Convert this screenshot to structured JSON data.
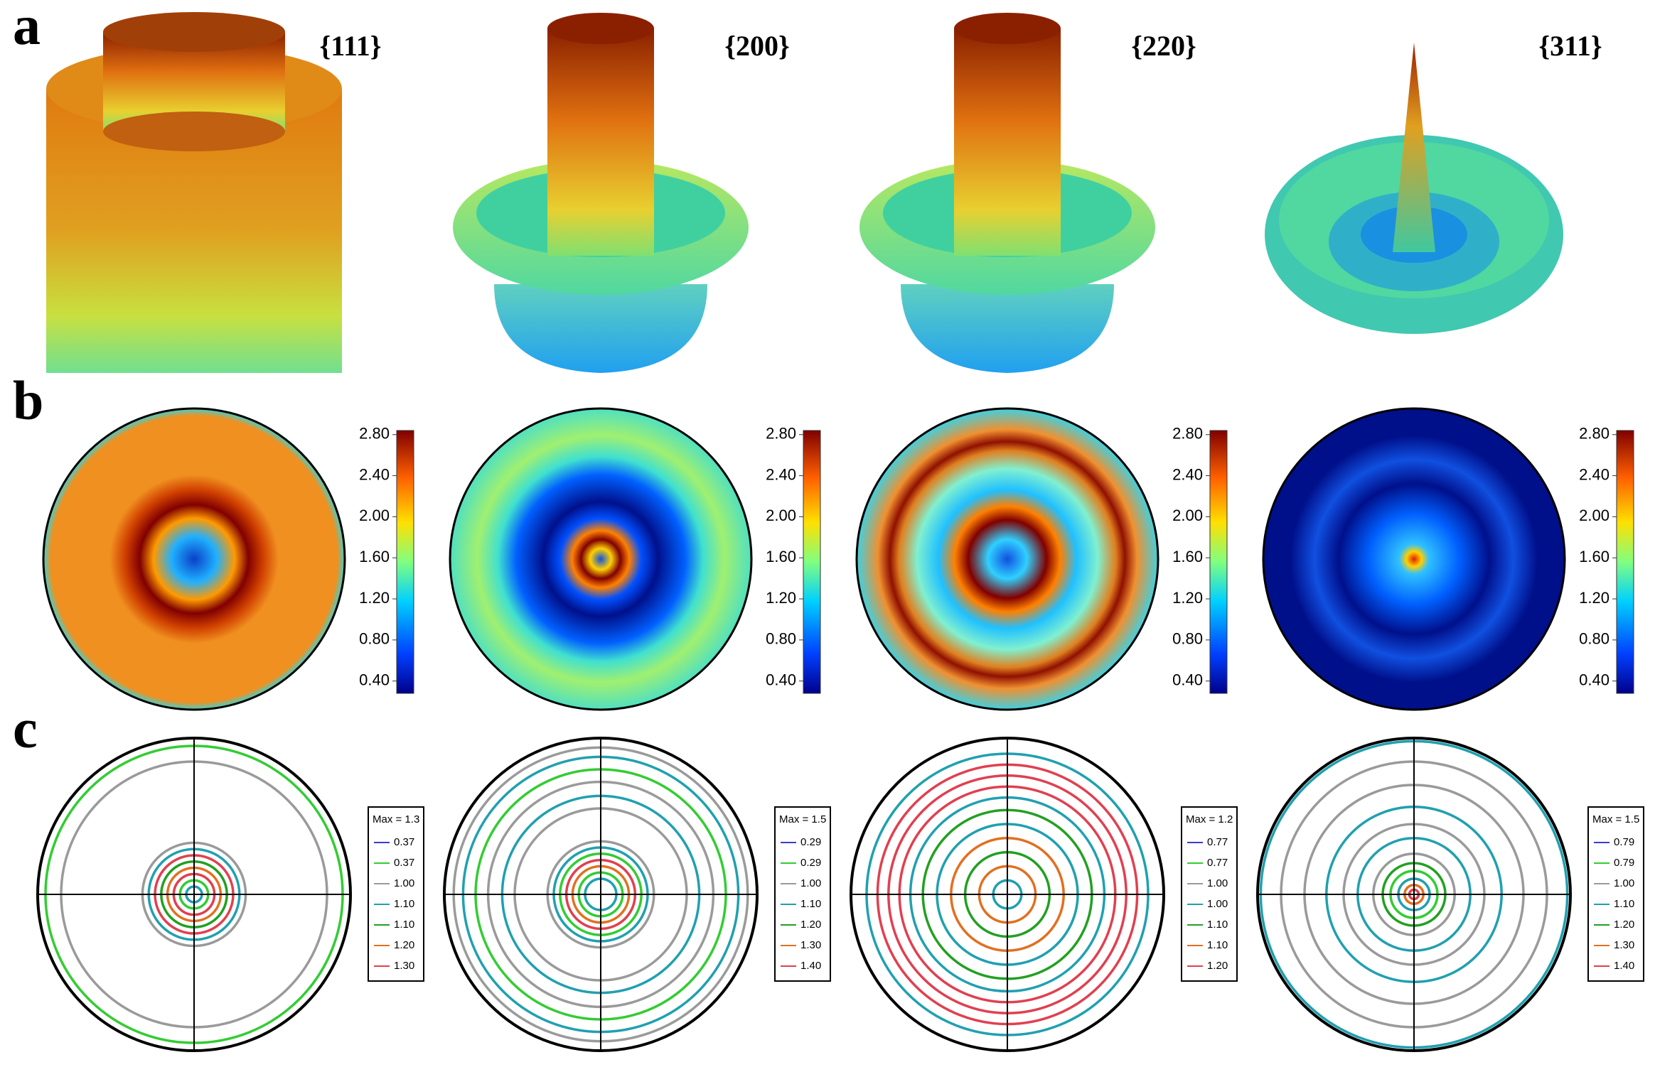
{
  "panel_labels": [
    "a",
    "b",
    "c"
  ],
  "colorbar_lim": [
    0.28,
    2.84
  ],
  "contour_colors": [
    "#3b3bd1",
    "#33cc33",
    "#9a9a9a",
    "#20a0b0",
    "#22a022",
    "#e07020",
    "#e04050"
  ],
  "columns": [
    {
      "plane": "{111}",
      "colorbar_ticks": [
        {
          "value": 2.8,
          "label": "2.80"
        },
        {
          "value": 2.4,
          "label": "2.40"
        },
        {
          "value": 2,
          "label": "2.00"
        },
        {
          "value": 1.6,
          "label": "1.60"
        },
        {
          "value": 1.2,
          "label": "1.20"
        },
        {
          "value": 0.8,
          "label": "0.80"
        },
        {
          "value": 0.4,
          "label": "0.40"
        }
      ],
      "legend": {
        "title": "Max = 1.3",
        "entries": [
          "0.37",
          "0.37",
          "1.00",
          "1.10",
          "1.10",
          "1.20",
          "1.30"
        ]
      }
    },
    {
      "plane": "{200}",
      "colorbar_ticks": [
        {
          "value": 2.8,
          "label": "2.80"
        },
        {
          "value": 2.4,
          "label": "2.40"
        },
        {
          "value": 2,
          "label": "2.00"
        },
        {
          "value": 1.6,
          "label": "1.60"
        },
        {
          "value": 1.2,
          "label": "1.20"
        },
        {
          "value": 0.8,
          "label": "0.80"
        },
        {
          "value": 0.4,
          "label": "0.40"
        }
      ],
      "legend": {
        "title": "Max = 1.5",
        "entries": [
          "0.29",
          "0.29",
          "1.00",
          "1.10",
          "1.20",
          "1.30",
          "1.40"
        ]
      }
    },
    {
      "plane": "{220}",
      "colorbar_ticks": [
        {
          "value": 2.8,
          "label": "2.80"
        },
        {
          "value": 2.4,
          "label": "2.40"
        },
        {
          "value": 2,
          "label": "2.00"
        },
        {
          "value": 1.6,
          "label": "1.60"
        },
        {
          "value": 1.2,
          "label": "1.20"
        },
        {
          "value": 0.8,
          "label": "0.80"
        },
        {
          "value": 0.4,
          "label": "0.40"
        }
      ],
      "legend": {
        "title": "Max = 1.2",
        "entries": [
          "0.77",
          "0.77",
          "1.00",
          "1.00",
          "1.10",
          "1.10",
          "1.20"
        ]
      }
    },
    {
      "plane": "{311}",
      "colorbar_ticks": [
        {
          "value": 2.8,
          "label": "2.80"
        },
        {
          "value": 2.4,
          "label": "2.40"
        },
        {
          "value": 2,
          "label": "2.00"
        },
        {
          "value": 1.6,
          "label": "1.60"
        },
        {
          "value": 1.2,
          "label": "1.20"
        },
        {
          "value": 0.8,
          "label": "0.80"
        },
        {
          "value": 0.4,
          "label": "0.40"
        }
      ],
      "legend": {
        "title": "Max = 1.5",
        "entries": [
          "0.79",
          "0.79",
          "1.00",
          "1.10",
          "1.20",
          "1.30",
          "1.40"
        ]
      }
    }
  ]
}
